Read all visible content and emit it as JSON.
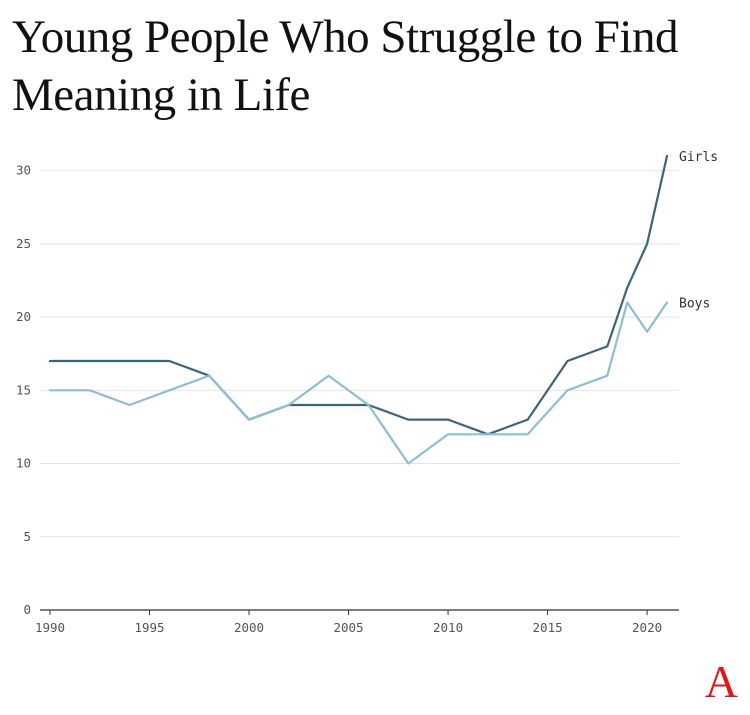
{
  "chart_data": {
    "type": "line",
    "title": "Young People Who Struggle to Find Meaning in Life",
    "xlabel": "",
    "ylabel": "",
    "xlim": [
      1990,
      2021
    ],
    "ylim": [
      0,
      31
    ],
    "x_ticks": [
      1990,
      1995,
      2000,
      2005,
      2010,
      2015,
      2020
    ],
    "y_ticks": [
      0,
      5,
      10,
      15,
      20,
      25,
      30
    ],
    "grid": "horizontal",
    "legend": "direct labels at line ends",
    "series": [
      {
        "name": "Girls",
        "color": "#3d6478",
        "x": [
          1990,
          1992,
          1994,
          1996,
          1998,
          2000,
          2002,
          2004,
          2006,
          2008,
          2010,
          2012,
          2014,
          2016,
          2018,
          2019,
          2020,
          2021
        ],
        "values": [
          17,
          17,
          17,
          17,
          16,
          13,
          14,
          14,
          14,
          13,
          13,
          12,
          13,
          17,
          18,
          22,
          25,
          31
        ]
      },
      {
        "name": "Boys",
        "color": "#8fbdd6",
        "x": [
          1990,
          1992,
          1994,
          1996,
          1998,
          2000,
          2002,
          2004,
          2006,
          2008,
          2010,
          2012,
          2014,
          2016,
          2018,
          2019,
          2020,
          2021
        ],
        "values": [
          15,
          15,
          14,
          15,
          16,
          13,
          14,
          16,
          14,
          10,
          12,
          12,
          12,
          15,
          16,
          21,
          19,
          21
        ]
      }
    ]
  },
  "brand": {
    "logo_text": "A",
    "color": "#e0161b"
  }
}
